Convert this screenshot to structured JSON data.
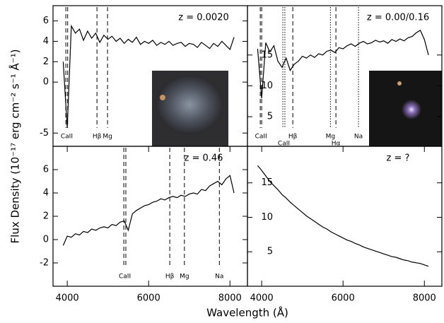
{
  "chart_data": [
    {
      "type": "line",
      "title": "z = 0.0020",
      "x": [
        3900,
        4000,
        4100,
        4200,
        4300,
        4400,
        4500,
        4600,
        4700,
        4800,
        4900,
        5000,
        5100,
        5200,
        5300,
        5400,
        5500,
        5600,
        5700,
        5800,
        5900,
        6000,
        6100,
        6200,
        6300,
        6400,
        6500,
        6600,
        6700,
        6800,
        6900,
        7000,
        7100,
        7200,
        7300,
        7400,
        7500,
        7600,
        7700,
        7800,
        7900,
        8000,
        8100
      ],
      "series": [
        {
          "color": "#000000",
          "values": [
            2.0,
            -4.5,
            5.5,
            4.8,
            5.2,
            4.1,
            5.0,
            4.3,
            4.8,
            3.9,
            4.6,
            4.2,
            4.5,
            4.0,
            4.3,
            3.8,
            4.2,
            3.9,
            4.4,
            3.7,
            4.0,
            3.8,
            4.1,
            3.6,
            3.9,
            3.7,
            4.0,
            3.6,
            3.8,
            3.9,
            3.5,
            3.8,
            3.7,
            3.4,
            3.9,
            3.6,
            3.3,
            3.8,
            3.5,
            4.0,
            3.6,
            3.2,
            4.4
          ]
        }
      ],
      "xlim": [
        3650,
        8430
      ],
      "ylim": [
        -6.3,
        7.5
      ],
      "yticks": [
        -5,
        0,
        2,
        4,
        6
      ],
      "lines": [
        {
          "x": [
            3965,
            4010
          ],
          "label": "CaII",
          "style": "dashed"
        },
        {
          "x": [
            4730
          ],
          "label": "Hβ",
          "style": "dashed"
        },
        {
          "x": [
            4990
          ],
          "label": "Mg",
          "style": "dashed"
        }
      ]
    },
    {
      "type": "line",
      "title": "z = 0.00/0.16",
      "x": [
        3900,
        4000,
        4100,
        4200,
        4300,
        4400,
        4500,
        4600,
        4700,
        4800,
        4900,
        5000,
        5100,
        5200,
        5300,
        5400,
        5500,
        5600,
        5700,
        5800,
        5900,
        6000,
        6100,
        6200,
        6300,
        6400,
        6500,
        6600,
        6700,
        6800,
        6900,
        7000,
        7100,
        7200,
        7300,
        7400,
        7500,
        7600,
        7700,
        7800,
        7900,
        8000,
        8100
      ],
      "series": [
        {
          "color": "#000000",
          "values": [
            16.0,
            8.0,
            17.0,
            15.5,
            16.5,
            14.0,
            13.0,
            14.5,
            12.5,
            13.5,
            14.0,
            14.8,
            14.5,
            15.0,
            14.6,
            15.2,
            15.0,
            15.6,
            15.8,
            15.4,
            16.2,
            16.0,
            16.5,
            16.8,
            16.4,
            16.9,
            17.2,
            16.8,
            17.0,
            17.4,
            17.1,
            17.3,
            16.9,
            17.5,
            17.2,
            17.6,
            17.3,
            17.8,
            18.0,
            18.6,
            19.0,
            17.5,
            15.0
          ]
        }
      ],
      "xlim": [
        3650,
        8430
      ],
      "ylim": [
        0.2,
        23
      ],
      "yticks": [
        5,
        10,
        15
      ],
      "lines": [
        {
          "x": [
            3965,
            4000
          ],
          "label": "CaII",
          "style": "dashed"
        },
        {
          "x": [
            4520,
            4570
          ],
          "label": "CaII",
          "style": "dotted"
        },
        {
          "x": [
            4765
          ],
          "label": "Hβ",
          "style": "dashed"
        },
        {
          "x": [
            5690
          ],
          "label": "Mg",
          "style": "dotted"
        },
        {
          "x": [
            5825
          ],
          "label": "Hα",
          "style": "dashed"
        },
        {
          "x": [
            6380
          ],
          "label": "Na",
          "style": "dotted"
        }
      ]
    },
    {
      "type": "line",
      "title": "z = 0.46",
      "x": [
        3900,
        4000,
        4100,
        4200,
        4300,
        4400,
        4500,
        4600,
        4700,
        4800,
        4900,
        5000,
        5100,
        5200,
        5300,
        5400,
        5500,
        5600,
        5700,
        5800,
        5900,
        6000,
        6100,
        6200,
        6300,
        6400,
        6500,
        6600,
        6700,
        6800,
        6900,
        7000,
        7100,
        7200,
        7300,
        7400,
        7500,
        7600,
        7700,
        7800,
        7900,
        8000,
        8100
      ],
      "series": [
        {
          "color": "#000000",
          "values": [
            -0.5,
            0.3,
            0.2,
            0.5,
            0.4,
            0.7,
            0.6,
            0.9,
            0.8,
            1.0,
            1.1,
            1.0,
            1.3,
            1.2,
            1.5,
            1.6,
            0.8,
            2.2,
            2.5,
            2.7,
            2.9,
            3.0,
            3.2,
            3.3,
            3.5,
            3.4,
            3.6,
            3.7,
            3.6,
            3.8,
            3.7,
            3.9,
            4.0,
            3.9,
            4.3,
            4.2,
            4.6,
            4.8,
            5.0,
            4.7,
            5.2,
            5.5,
            4.0
          ]
        }
      ],
      "xlim": [
        3650,
        8430
      ],
      "ylim": [
        -4,
        8
      ],
      "yticks": [
        -2,
        0,
        2,
        4,
        6
      ],
      "xticks": [
        4000,
        6000,
        8000
      ],
      "lines": [
        {
          "x": [
            5390,
            5440
          ],
          "label": "CaII",
          "style": "dashed"
        },
        {
          "x": [
            6520
          ],
          "label": "Hβ",
          "style": "dashed"
        },
        {
          "x": [
            6880
          ],
          "label": "Mg",
          "style": "dashed"
        },
        {
          "x": [
            7740
          ],
          "label": "Na",
          "style": "dashed"
        }
      ]
    },
    {
      "type": "line",
      "title": "z = ?",
      "x": [
        3900,
        4000,
        4100,
        4200,
        4300,
        4400,
        4500,
        4600,
        4700,
        4800,
        4900,
        5000,
        5100,
        5200,
        5300,
        5400,
        5500,
        5600,
        5700,
        5800,
        5900,
        6000,
        6100,
        6200,
        6300,
        6400,
        6500,
        6600,
        6700,
        6800,
        6900,
        7000,
        7100,
        7200,
        7300,
        7400,
        7500,
        7600,
        7700,
        7800,
        7900,
        8000,
        8100
      ],
      "series": [
        {
          "color": "#000000",
          "values": [
            17.5,
            16.8,
            16.0,
            15.2,
            14.6,
            14.0,
            13.3,
            12.8,
            12.2,
            11.7,
            11.2,
            10.7,
            10.2,
            9.8,
            9.4,
            9.0,
            8.6,
            8.3,
            7.9,
            7.6,
            7.3,
            7.0,
            6.7,
            6.5,
            6.2,
            6.0,
            5.7,
            5.5,
            5.3,
            5.1,
            4.9,
            4.7,
            4.5,
            4.3,
            4.2,
            4.0,
            3.8,
            3.7,
            3.5,
            3.4,
            3.3,
            3.1,
            2.9
          ]
        }
      ],
      "xlim": [
        3650,
        8430
      ],
      "ylim": [
        0,
        20.3
      ],
      "yticks": [
        5,
        10,
        15
      ],
      "xticks": [
        4000,
        6000,
        8000
      ],
      "lines": []
    }
  ],
  "xlabel": "Wavelength (Å)",
  "ylabel": "Flux Density (10⁻¹⁷ erg cm⁻² s⁻¹ Å⁻¹)"
}
